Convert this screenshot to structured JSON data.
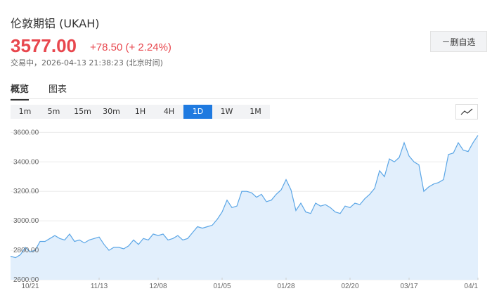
{
  "header": {
    "title": "伦敦期铝 (UKAH)",
    "price": "3577.00",
    "change": "+78.50 (+ 2.24%)",
    "status": "交易中，2026-04-13 21:38:23 (北京时间)",
    "watchlist_button": "－删自选"
  },
  "tabs": [
    "概览",
    "图表"
  ],
  "timeframes": [
    "1m",
    "5m",
    "15m",
    "30m",
    "1H",
    "4H",
    "1D",
    "1W",
    "1M"
  ],
  "chart_data": {
    "type": "area",
    "color": "#5ba6e6",
    "area_color": "#e2effc",
    "grid": true,
    "ylim": [
      2600,
      3640
    ],
    "yticks": [
      {
        "value": 2600,
        "label": "2600.00"
      },
      {
        "value": 2800,
        "label": "2800.00"
      },
      {
        "value": 3000,
        "label": "3000.00"
      },
      {
        "value": 3200,
        "label": "3200.00"
      },
      {
        "value": 3400,
        "label": "3400.00"
      },
      {
        "value": 3600,
        "label": "3600.00"
      }
    ],
    "categories": [
      null,
      null,
      null,
      null,
      "10/21",
      null,
      null,
      null,
      null,
      null,
      null,
      null,
      null,
      null,
      null,
      null,
      null,
      null,
      "11/13",
      null,
      null,
      null,
      null,
      null,
      null,
      null,
      null,
      null,
      null,
      null,
      "12/08",
      null,
      null,
      null,
      null,
      null,
      null,
      null,
      null,
      null,
      null,
      null,
      null,
      "01/05",
      null,
      null,
      null,
      null,
      null,
      null,
      null,
      null,
      null,
      null,
      null,
      null,
      "01/28",
      null,
      null,
      null,
      null,
      null,
      null,
      null,
      null,
      null,
      null,
      null,
      null,
      "02/20",
      null,
      null,
      null,
      null,
      null,
      null,
      null,
      null,
      null,
      null,
      null,
      "03/17",
      null,
      null,
      null,
      null,
      null,
      null,
      null,
      null,
      null,
      null,
      null,
      null,
      null,
      "04/1"
    ],
    "values": [
      2760,
      2750,
      2770,
      2820,
      2790,
      2800,
      2860,
      2860,
      2880,
      2900,
      2880,
      2870,
      2910,
      2860,
      2870,
      2850,
      2870,
      2880,
      2890,
      2840,
      2800,
      2820,
      2820,
      2810,
      2830,
      2870,
      2840,
      2880,
      2870,
      2910,
      2900,
      2910,
      2870,
      2880,
      2900,
      2870,
      2880,
      2920,
      2960,
      2950,
      2960,
      2970,
      3010,
      3060,
      3140,
      3090,
      3100,
      3200,
      3200,
      3190,
      3160,
      3180,
      3130,
      3140,
      3180,
      3210,
      3280,
      3210,
      3070,
      3120,
      3060,
      3050,
      3120,
      3100,
      3110,
      3090,
      3060,
      3050,
      3100,
      3090,
      3120,
      3110,
      3150,
      3180,
      3220,
      3340,
      3300,
      3420,
      3400,
      3430,
      3530,
      3440,
      3400,
      3380,
      3200,
      3230,
      3250,
      3260,
      3280,
      3450,
      3460,
      3530,
      3480,
      3470,
      3530,
      3580
    ]
  }
}
